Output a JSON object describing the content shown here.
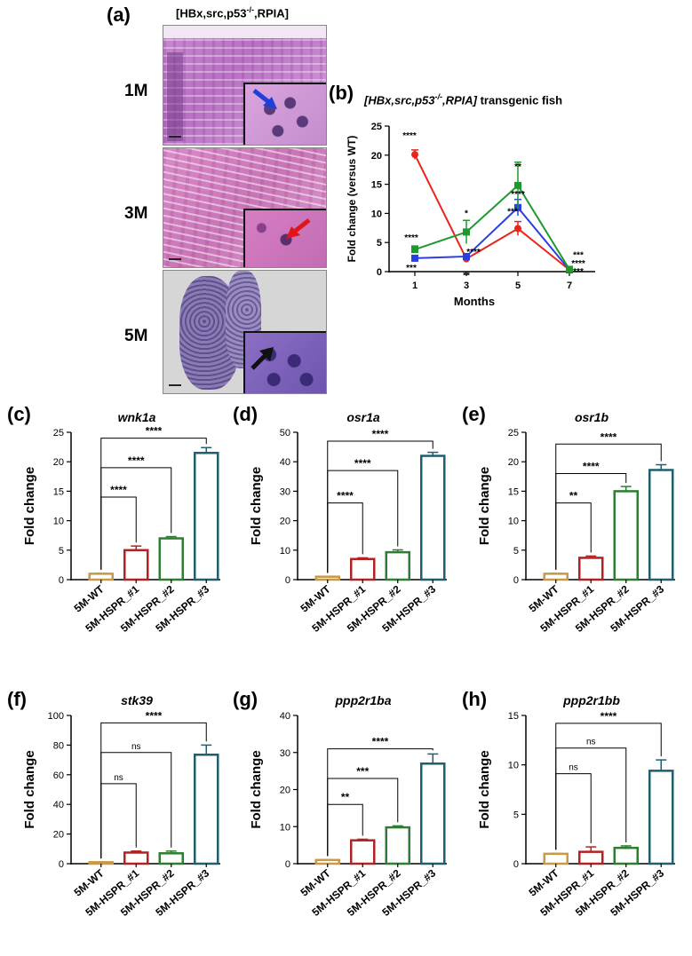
{
  "panel_a": {
    "letter": "(a)",
    "title": "[HBx,src,p53",
    "title_sup": "-/-",
    "title_end": ",RPIA]",
    "rows": [
      {
        "label": "1M",
        "arrow_color": "#1f3fd6"
      },
      {
        "label": "3M",
        "arrow_color": "#e0161c"
      },
      {
        "label": "5M",
        "arrow_color": "#111111"
      }
    ]
  },
  "panel_b": {
    "letter": "(b)",
    "title_pre": "[HBx,src,p53",
    "title_sup": "-/-",
    "title_post": ",RPIA]",
    "title_rest": " transgenic fish"
  },
  "chart_data": [
    {
      "panel": "(b)",
      "type": "line",
      "x": [
        1,
        3,
        5,
        7
      ],
      "xlabel": "Months",
      "ylabel": "Fold change (versus WT)",
      "ylim": [
        0,
        25
      ],
      "yticks": [
        0,
        5,
        10,
        15,
        20,
        25
      ],
      "series": [
        {
          "color": "#e8241c",
          "marker": "circle",
          "values": [
            20.1,
            2.2,
            7.4,
            0.3
          ],
          "errors": [
            0.8,
            0.6,
            1.2,
            0.1
          ],
          "significance": [
            "****",
            "**",
            "***",
            "****"
          ]
        },
        {
          "color": "#2a3fe0",
          "marker": "square",
          "values": [
            2.3,
            2.6,
            11.0,
            0.3
          ],
          "errors": [
            0.3,
            0.4,
            1.4,
            0.1
          ],
          "significance": [
            "***",
            "****",
            "****",
            "***"
          ]
        },
        {
          "color": "#1c9a2e",
          "marker": "square",
          "values": [
            3.8,
            6.8,
            14.8,
            0.4
          ],
          "errors": [
            0.6,
            2.0,
            4.0,
            0.1
          ],
          "significance": [
            "****",
            "*",
            "**",
            "***"
          ]
        }
      ]
    },
    {
      "panel": "(c)",
      "type": "bar",
      "title": "wnk1a",
      "ylabel": "Fold change",
      "categories": [
        "5M-WT",
        "5M-HSPR_#1",
        "5M-HSPR_#2",
        "5M-HSPR_#3"
      ],
      "values": [
        1.0,
        5.0,
        7.0,
        21.5
      ],
      "errors": [
        0.1,
        0.7,
        0.3,
        0.9
      ],
      "ylim": [
        0,
        25
      ],
      "yticks": [
        0,
        5,
        10,
        15,
        20,
        25
      ],
      "bar_colors": [
        "#c99a45",
        "#b22222",
        "#2e7d32",
        "#1f5f6e"
      ],
      "comparisons": [
        {
          "to": 1,
          "label": "****",
          "y": 14
        },
        {
          "to": 2,
          "label": "****",
          "y": 19
        },
        {
          "to": 3,
          "label": "****",
          "y": 24
        }
      ]
    },
    {
      "panel": "(d)",
      "type": "bar",
      "title": "osr1a",
      "ylabel": "Fold change",
      "categories": [
        "5M-WT",
        "5M-HSPR_#1",
        "5M-HSPR_#2",
        "5M-HSPR_#3"
      ],
      "values": [
        1.0,
        7.0,
        9.3,
        42.0
      ],
      "errors": [
        0.1,
        0.4,
        0.8,
        1.2
      ],
      "ylim": [
        0,
        50
      ],
      "yticks": [
        0,
        10,
        20,
        30,
        40,
        50
      ],
      "bar_colors": [
        "#c99a45",
        "#b22222",
        "#2e7d32",
        "#1f5f6e"
      ],
      "comparisons": [
        {
          "to": 1,
          "label": "****",
          "y": 26
        },
        {
          "to": 2,
          "label": "****",
          "y": 37
        },
        {
          "to": 3,
          "label": "****",
          "y": 47
        }
      ]
    },
    {
      "panel": "(e)",
      "type": "bar",
      "title": "osr1b",
      "ylabel": "Fold change",
      "categories": [
        "5M-WT",
        "5M-HSPR_#1",
        "5M-HSPR_#2",
        "5M-HSPR_#3"
      ],
      "values": [
        1.0,
        3.7,
        15.0,
        18.6
      ],
      "errors": [
        0.1,
        0.3,
        0.8,
        0.9
      ],
      "ylim": [
        0,
        25
      ],
      "yticks": [
        0,
        5,
        10,
        15,
        20,
        25
      ],
      "bar_colors": [
        "#c99a45",
        "#b22222",
        "#2e7d32",
        "#1f5f6e"
      ],
      "comparisons": [
        {
          "to": 1,
          "label": "**",
          "y": 13
        },
        {
          "to": 2,
          "label": "****",
          "y": 18
        },
        {
          "to": 3,
          "label": "****",
          "y": 23
        }
      ]
    },
    {
      "panel": "(f)",
      "type": "bar",
      "title": "stk39",
      "ylabel": "Fold change",
      "categories": [
        "5M-WT",
        "5M-HSPR_#1",
        "5M-HSPR_#2",
        "5M-HSPR_#3"
      ],
      "values": [
        1.0,
        7.5,
        7.0,
        73.5
      ],
      "errors": [
        0.1,
        1.0,
        1.5,
        6.5
      ],
      "ylim": [
        0,
        100
      ],
      "yticks": [
        0,
        20,
        40,
        60,
        80,
        100
      ],
      "bar_colors": [
        "#c99a45",
        "#b22222",
        "#2e7d32",
        "#1f5f6e"
      ],
      "comparisons": [
        {
          "to": 1,
          "label": "ns",
          "y": 54
        },
        {
          "to": 2,
          "label": "ns",
          "y": 75
        },
        {
          "to": 3,
          "label": "****",
          "y": 95
        }
      ]
    },
    {
      "panel": "(g)",
      "type": "bar",
      "title": "ppp2r1ba",
      "ylabel": "Fold change",
      "categories": [
        "5M-WT",
        "5M-HSPR_#1",
        "5M-HSPR_#2",
        "5M-HSPR_#3"
      ],
      "values": [
        1.0,
        6.3,
        9.8,
        27.0
      ],
      "errors": [
        0.1,
        0.3,
        0.4,
        2.6
      ],
      "ylim": [
        0,
        40
      ],
      "yticks": [
        0,
        10,
        20,
        30,
        40
      ],
      "bar_colors": [
        "#c99a45",
        "#b22222",
        "#2e7d32",
        "#1f5f6e"
      ],
      "comparisons": [
        {
          "to": 1,
          "label": "**",
          "y": 16
        },
        {
          "to": 2,
          "label": "***",
          "y": 23
        },
        {
          "to": 3,
          "label": "****",
          "y": 31
        }
      ]
    },
    {
      "panel": "(h)",
      "type": "bar",
      "title": "ppp2r1bb",
      "ylabel": "Fold change",
      "categories": [
        "5M-WT",
        "5M-HSPR_#1",
        "5M-HSPR_#2",
        "5M-HSPR_#3"
      ],
      "values": [
        1.0,
        1.2,
        1.6,
        9.4
      ],
      "errors": [
        0.05,
        0.5,
        0.2,
        1.1
      ],
      "ylim": [
        0,
        15
      ],
      "yticks": [
        0,
        5,
        10,
        15
      ],
      "bar_colors": [
        "#c99a45",
        "#b22222",
        "#2e7d32",
        "#1f5f6e"
      ],
      "comparisons": [
        {
          "to": 1,
          "label": "ns",
          "y": 9.1
        },
        {
          "to": 2,
          "label": "ns",
          "y": 11.7
        },
        {
          "to": 3,
          "label": "****",
          "y": 14.2
        }
      ]
    }
  ]
}
